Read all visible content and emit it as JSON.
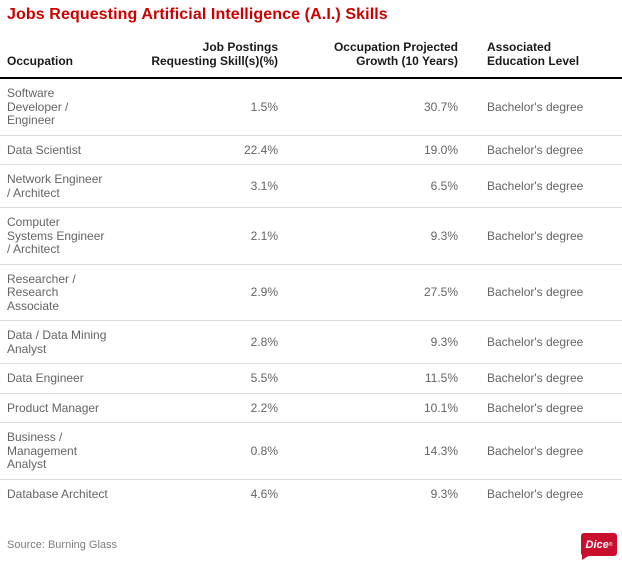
{
  "title": "Jobs Requesting Artificial Intelligence (A.I.) Skills",
  "chart_data": {
    "type": "table",
    "title": "Jobs Requesting Artificial Intelligence (A.I.) Skills",
    "columns": [
      "Occupation",
      "Job Postings Requesting Skill(s)(%)",
      "Occupation Projected Growth (10 Years)",
      "Associated Education Level"
    ],
    "headers": {
      "occupation": "Occupation",
      "postings": "Job Postings\nRequesting Skill(s)(%)",
      "growth": "Occupation Projected\nGrowth (10 Years)",
      "education": "Associated\nEducation Level"
    },
    "rows": [
      {
        "occupation": "Software\nDeveloper /\nEngineer",
        "occupation_full": "Software Developer / Engineer",
        "postings": "1.5%",
        "postings_pct": 1.5,
        "growth": "30.7%",
        "growth_pct": 30.7,
        "education": "Bachelor's degree"
      },
      {
        "occupation": "Data Scientist",
        "occupation_full": "Data Scientist",
        "postings": "22.4%",
        "postings_pct": 22.4,
        "growth": "19.0%",
        "growth_pct": 19.0,
        "education": "Bachelor's degree"
      },
      {
        "occupation": "Network Engineer\n/ Architect",
        "occupation_full": "Network Engineer / Architect",
        "postings": "3.1%",
        "postings_pct": 3.1,
        "growth": "6.5%",
        "growth_pct": 6.5,
        "education": "Bachelor's degree"
      },
      {
        "occupation": "Computer\nSystems Engineer\n/ Architect",
        "occupation_full": "Computer Systems Engineer / Architect",
        "postings": "2.1%",
        "postings_pct": 2.1,
        "growth": "9.3%",
        "growth_pct": 9.3,
        "education": "Bachelor's degree"
      },
      {
        "occupation": "Researcher /\nResearch\nAssociate",
        "occupation_full": "Researcher / Research Associate",
        "postings": "2.9%",
        "postings_pct": 2.9,
        "growth": "27.5%",
        "growth_pct": 27.5,
        "education": "Bachelor's degree"
      },
      {
        "occupation": "Data / Data Mining\nAnalyst",
        "occupation_full": "Data / Data Mining Analyst",
        "postings": "2.8%",
        "postings_pct": 2.8,
        "growth": "9.3%",
        "growth_pct": 9.3,
        "education": "Bachelor's degree"
      },
      {
        "occupation": "Data Engineer",
        "occupation_full": "Data Engineer",
        "postings": "5.5%",
        "postings_pct": 5.5,
        "growth": "11.5%",
        "growth_pct": 11.5,
        "education": "Bachelor's degree"
      },
      {
        "occupation": "Product Manager",
        "occupation_full": "Product Manager",
        "postings": "2.2%",
        "postings_pct": 2.2,
        "growth": "10.1%",
        "growth_pct": 10.1,
        "education": "Bachelor's degree"
      },
      {
        "occupation": "Business /\nManagement\nAnalyst",
        "occupation_full": "Business / Management Analyst",
        "postings": "0.8%",
        "postings_pct": 0.8,
        "growth": "14.3%",
        "growth_pct": 14.3,
        "education": "Bachelor's degree"
      },
      {
        "occupation": "Database Architect",
        "occupation_full": "Database Architect",
        "postings": "4.6%",
        "postings_pct": 4.6,
        "growth": "9.3%",
        "growth_pct": 9.3,
        "education": "Bachelor's degree"
      }
    ]
  },
  "footer": {
    "source": "Source: Burning Glass",
    "logo_text": "Dice",
    "logo_mark": "®"
  },
  "colors": {
    "title_red": "#cc0000",
    "logo_red": "#c8102e",
    "header_text": "#1a1a1a",
    "body_text": "#646464",
    "source_text": "#7d7d7d",
    "divider": "#dcdcdc",
    "header_rule": "#000000",
    "background": "#ffffff"
  }
}
